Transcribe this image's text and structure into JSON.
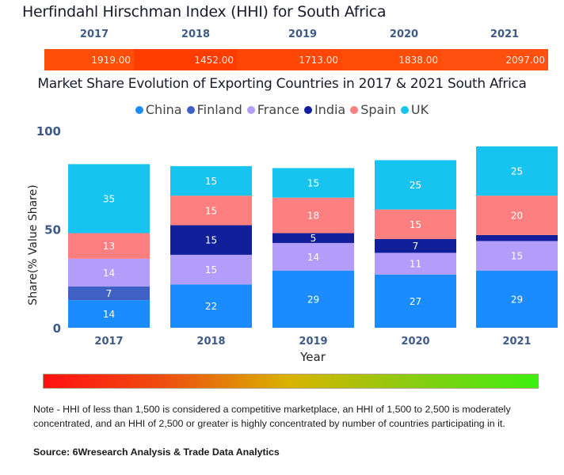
{
  "hhi": {
    "title": "Herfindahl Hirschman Index (HHI) for South Africa",
    "years": [
      "2017",
      "2018",
      "2019",
      "2020",
      "2021"
    ],
    "values": [
      "1919.00",
      "1452.00",
      "1713.00",
      "1838.00",
      "2097.00"
    ],
    "cell_colors": [
      "#ff4e0a",
      "#ff3d00",
      "#ff4708",
      "#ff4c08",
      "#ff5010"
    ]
  },
  "chart_data": {
    "type": "bar",
    "stacked": true,
    "title": "Market Share Evolution of Exporting Countries in 2017 & 2021 South Africa",
    "xlabel": "Year",
    "ylabel": "Share(% Value Share)",
    "ylim": [
      0,
      100
    ],
    "yticks": [
      "0",
      "50",
      "100"
    ],
    "categories": [
      "2017",
      "2018",
      "2019",
      "2020",
      "2021"
    ],
    "legend_position": "top-center",
    "series": [
      {
        "name": "China",
        "color": "#1a8cff",
        "values": [
          14,
          22,
          29,
          27,
          29
        ],
        "labels": [
          "14",
          "22",
          "29",
          "27",
          "29"
        ]
      },
      {
        "name": "Finland",
        "color": "#3f60c4",
        "values": [
          7,
          0,
          0,
          0,
          0
        ],
        "labels": [
          "7",
          "",
          "",
          "",
          ""
        ]
      },
      {
        "name": "France",
        "color": "#b29dfa",
        "values": [
          14,
          15,
          14,
          11,
          15
        ],
        "labels": [
          "14",
          "15",
          "14",
          "11",
          "15"
        ]
      },
      {
        "name": "India",
        "color": "#121f9b",
        "values": [
          0,
          15,
          5,
          7,
          3
        ],
        "labels": [
          "",
          "15",
          "5",
          "7",
          ""
        ]
      },
      {
        "name": "Spain",
        "color": "#fd7f7f",
        "values": [
          13,
          15,
          18,
          15,
          20
        ],
        "labels": [
          "13",
          "15",
          "18",
          "15",
          "20"
        ]
      },
      {
        "name": "UK",
        "color": "#17c4f0",
        "values": [
          35,
          15,
          15,
          25,
          25
        ],
        "labels": [
          "35",
          "15",
          "15",
          "25",
          "25"
        ]
      }
    ]
  },
  "gradient": {
    "colors": [
      "#ff1010",
      "#ee5010",
      "#d8b400",
      "#88cc10",
      "#3ef010"
    ]
  },
  "footer": {
    "note": "Note - HHI of less than 1,500 is considered a competitive marketplace, an HHI of 1,500 to 2,500 is moderately concentrated, and an HHI of 2,500 or greater is highly concentrated by number of countries participating in it.",
    "source": "Source: 6Wresearch Analysis & Trade Data Analytics"
  }
}
